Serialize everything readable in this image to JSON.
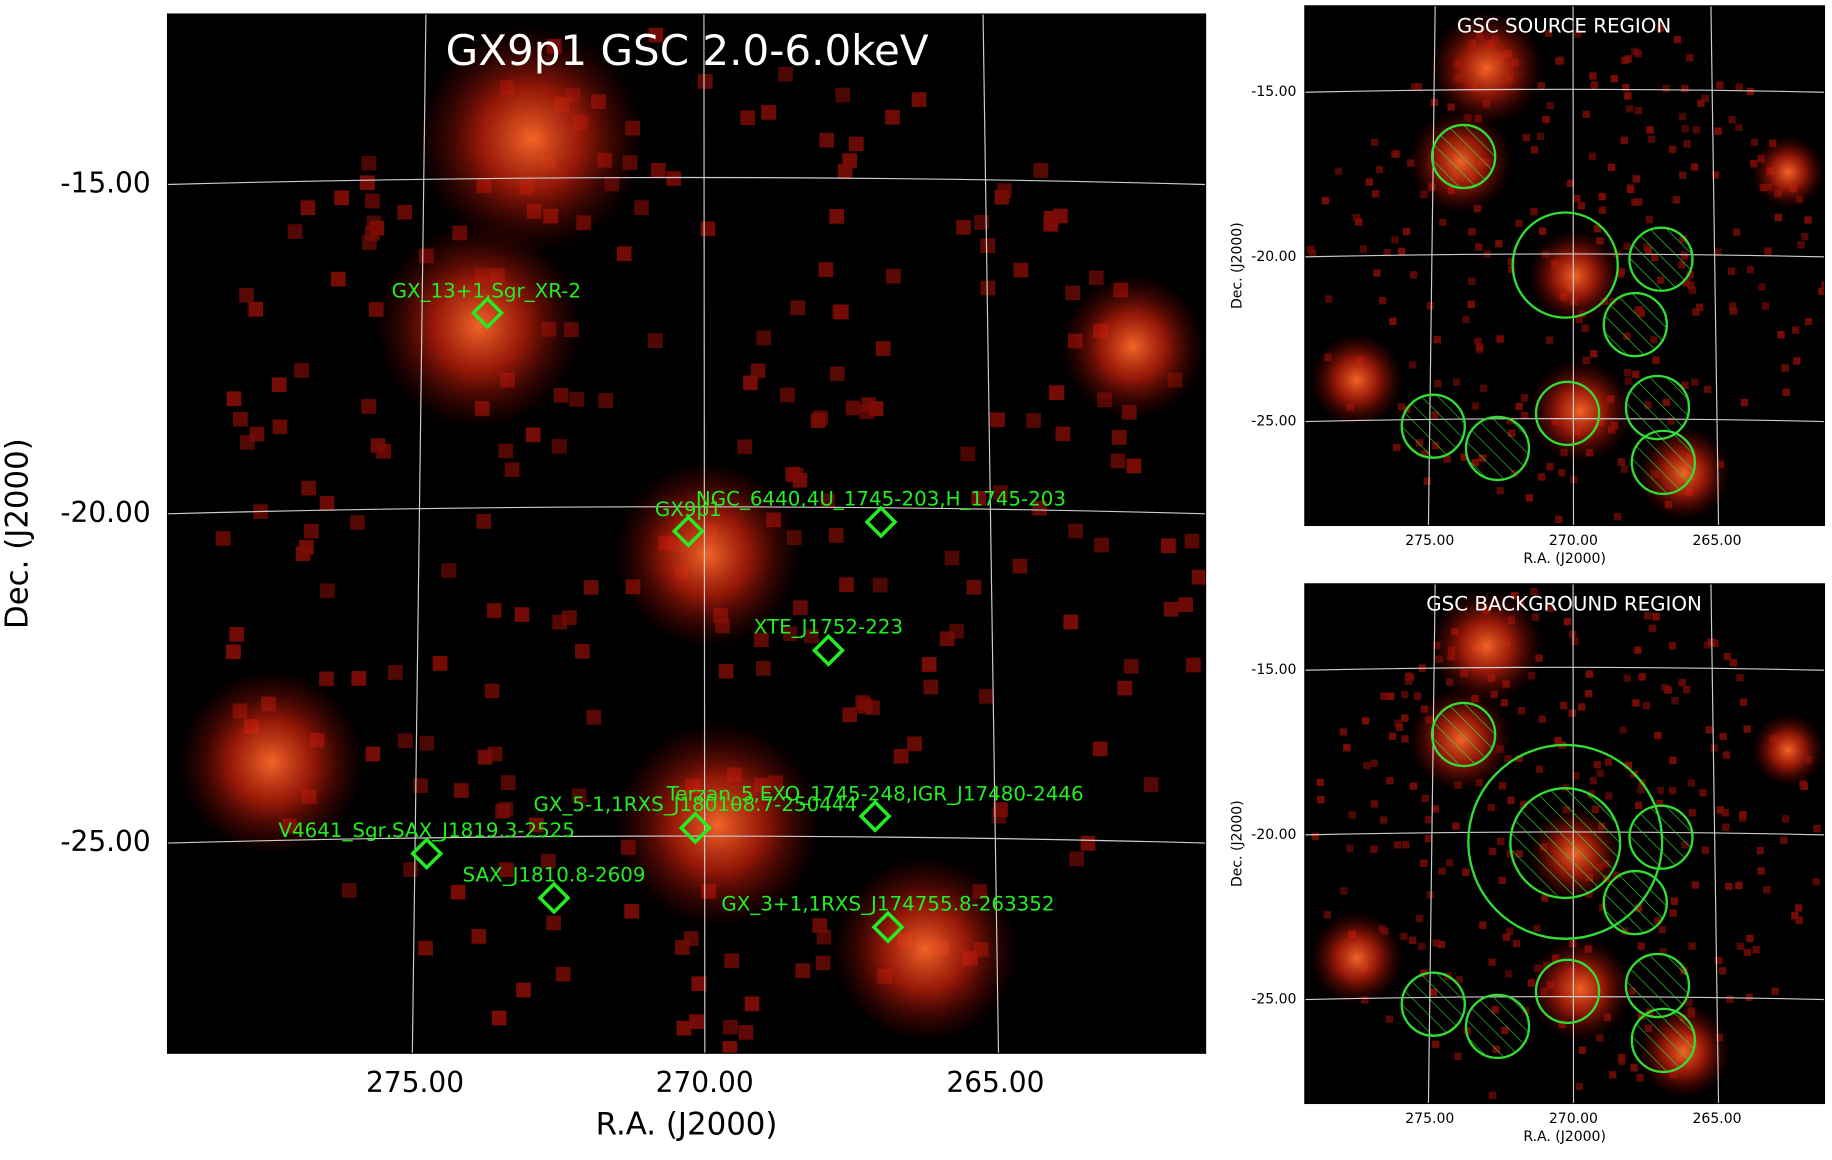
{
  "main_panel": {
    "title": "GX9p1 GSC 2.0-6.0keV",
    "x_label": "R.A. (J2000)",
    "y_label": "Dec. (J2000)",
    "x_ticks": [
      "275.00",
      "270.00",
      "265.00"
    ],
    "y_ticks": [
      "-15.00",
      "-20.00",
      "-25.00"
    ],
    "sources": [
      "GX_13+1,Sgr_XR-2",
      "GX9p1",
      "NGC_6440,4U_1745-203,H_1745-203",
      "XTE_J1752-223",
      "GX_5-1,1RXS_J180108.7-250444",
      "Terzan_5,EXO_1745-248,IGR_J17480-2446",
      "V4641_Sgr,SAX_J1819.3-2525",
      "SAX_J1810.8-2609",
      "GX_3+1,1RXS_J174755.8-263352"
    ]
  },
  "source_panel": {
    "title": "GSC SOURCE REGION",
    "x_label": "R.A. (J2000)",
    "y_label": "Dec. (J2000)",
    "x_ticks": [
      "275.00",
      "270.00",
      "265.00"
    ],
    "y_ticks": [
      "-15.00",
      "-20.00",
      "-25.00"
    ]
  },
  "background_panel": {
    "title": "GSC BACKGROUND REGION",
    "x_label": "R.A. (J2000)",
    "y_label": "Dec. (J2000)",
    "x_ticks": [
      "275.00",
      "270.00",
      "265.00"
    ],
    "y_ticks": [
      "-15.00",
      "-20.00",
      "-25.00"
    ]
  }
}
